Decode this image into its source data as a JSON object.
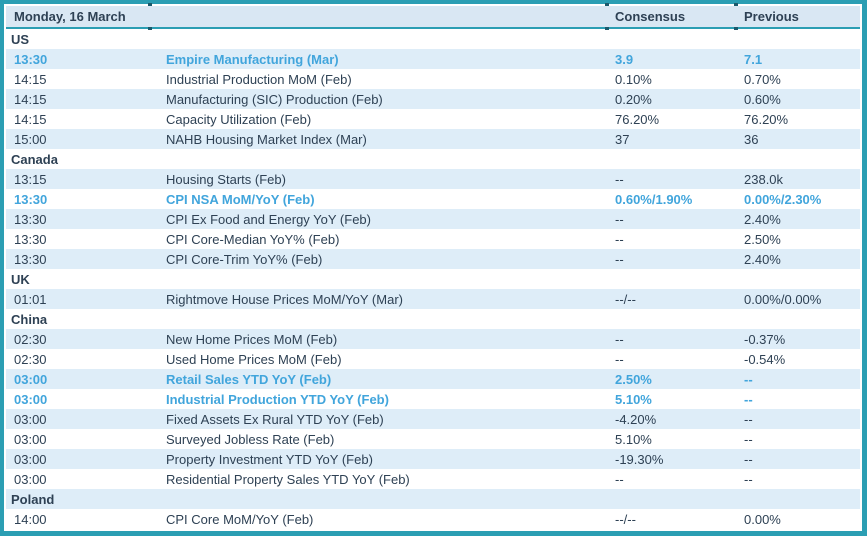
{
  "header": {
    "date_label": "Monday, 16 March",
    "consensus_label": "Consensus",
    "previous_label": "Previous"
  },
  "colors": {
    "border_teal": "#2B9EB3",
    "header_bg": "#D9E7F3",
    "stripe_blue": "#DEEDF8",
    "highlight_blue": "#41A5DC",
    "text_dark": "#2E4154",
    "tick_dark": "#1C5A6C"
  },
  "sections": [
    {
      "country": "US",
      "rows": [
        {
          "time": "13:30",
          "event": "Empire Manufacturing (Mar)",
          "consensus": "3.9",
          "previous": "7.1",
          "highlight": true
        },
        {
          "time": "14:15",
          "event": "Industrial Production MoM (Feb)",
          "consensus": "0.10%",
          "previous": "0.70%",
          "highlight": false
        },
        {
          "time": "14:15",
          "event": "Manufacturing (SIC) Production (Feb)",
          "consensus": "0.20%",
          "previous": "0.60%",
          "highlight": false
        },
        {
          "time": "14:15",
          "event": "Capacity Utilization (Feb)",
          "consensus": "76.20%",
          "previous": "76.20%",
          "highlight": false
        },
        {
          "time": "15:00",
          "event": "NAHB Housing Market Index (Mar)",
          "consensus": "37",
          "previous": "36",
          "highlight": false
        }
      ]
    },
    {
      "country": "Canada",
      "rows": [
        {
          "time": "13:15",
          "event": "Housing Starts (Feb)",
          "consensus": "--",
          "previous": "238.0k",
          "highlight": false
        },
        {
          "time": "13:30",
          "event": "CPI NSA MoM/YoY (Feb)",
          "consensus": "0.60%/1.90%",
          "previous": "0.00%/2.30%",
          "highlight": true
        },
        {
          "time": "13:30",
          "event": "CPI Ex Food and Energy YoY (Feb)",
          "consensus": "--",
          "previous": "2.40%",
          "highlight": false
        },
        {
          "time": "13:30",
          "event": "CPI Core-Median YoY% (Feb)",
          "consensus": "--",
          "previous": "2.50%",
          "highlight": false
        },
        {
          "time": "13:30",
          "event": "CPI Core-Trim YoY% (Feb)",
          "consensus": "--",
          "previous": "2.40%",
          "highlight": false
        }
      ]
    },
    {
      "country": "UK",
      "rows": [
        {
          "time": "01:01",
          "event": "Rightmove House Prices MoM/YoY (Mar)",
          "consensus": "--/--",
          "previous": "0.00%/0.00%",
          "highlight": false
        }
      ]
    },
    {
      "country": "China",
      "rows": [
        {
          "time": "02:30",
          "event": "New Home Prices MoM (Feb)",
          "consensus": "--",
          "previous": "-0.37%",
          "highlight": false
        },
        {
          "time": "02:30",
          "event": "Used Home Prices MoM (Feb)",
          "consensus": "--",
          "previous": "-0.54%",
          "highlight": false
        },
        {
          "time": "03:00",
          "event": "Retail Sales YTD YoY (Feb)",
          "consensus": "2.50%",
          "previous": "--",
          "highlight": true
        },
        {
          "time": "03:00",
          "event": "Industrial Production YTD YoY (Feb)",
          "consensus": "5.10%",
          "previous": "--",
          "highlight": true
        },
        {
          "time": "03:00",
          "event": "Fixed Assets Ex Rural YTD YoY (Feb)",
          "consensus": "-4.20%",
          "previous": "--",
          "highlight": false
        },
        {
          "time": "03:00",
          "event": "Surveyed Jobless Rate (Feb)",
          "consensus": "5.10%",
          "previous": "--",
          "highlight": false
        },
        {
          "time": "03:00",
          "event": "Property Investment YTD YoY (Feb)",
          "consensus": "-19.30%",
          "previous": "--",
          "highlight": false
        },
        {
          "time": "03:00",
          "event": "Residential Property Sales YTD YoY (Feb)",
          "consensus": "--",
          "previous": "--",
          "highlight": false
        }
      ]
    },
    {
      "country": "Poland",
      "rows": [
        {
          "time": "14:00",
          "event": "CPI Core MoM/YoY (Feb)",
          "consensus": "--/--",
          "previous": "0.00%",
          "highlight": false
        }
      ]
    }
  ]
}
